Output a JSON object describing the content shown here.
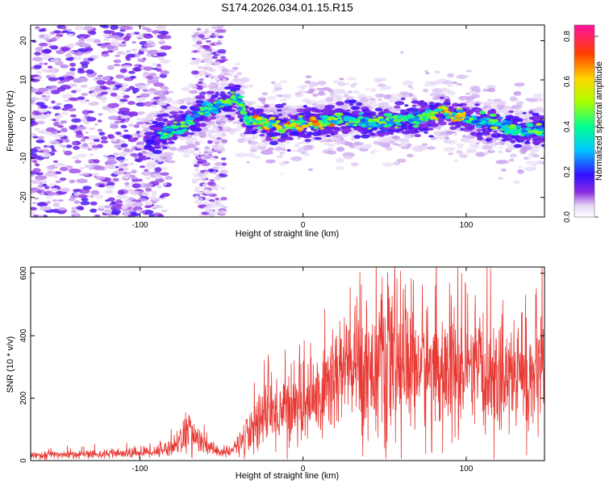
{
  "title": "S174.2026.034.01.15.R15",
  "chart_data": [
    {
      "type": "heatmap",
      "title": "S174.2026.034.01.15.R15",
      "xlabel": "Height of straight line (km)",
      "ylabel": "Frequency (Hz)",
      "xlim": [
        -167,
        148
      ],
      "ylim": [
        -25,
        24
      ],
      "xticks": [
        -100,
        0,
        100
      ],
      "yticks": [
        -20,
        -10,
        0,
        10,
        20
      ],
      "colorbar": {
        "label": "Normalized spectral amplitude",
        "range": [
          0,
          0.85
        ],
        "ticks": [
          "0.0",
          "0.2",
          "0.4",
          "0.6",
          "0.8"
        ]
      },
      "trace": {
        "x": [
          -95,
          -85,
          -75,
          -65,
          -55,
          -45,
          -40,
          -35,
          -25,
          -10,
          0,
          10,
          20,
          30,
          40,
          50,
          60,
          70,
          80,
          85,
          90,
          100,
          110,
          120,
          130,
          140,
          148
        ],
        "y": [
          -6,
          -4,
          -2,
          1,
          3,
          5,
          6,
          0,
          -1,
          -2,
          -1,
          -1,
          0,
          0,
          -1,
          -1,
          0,
          0,
          1,
          3,
          1,
          0,
          -1,
          -1,
          -3,
          -3,
          -3
        ]
      }
    },
    {
      "type": "line",
      "xlabel": "Height of straight line (km)",
      "ylabel": "SNR (10 * v/v)",
      "xlim": [
        -167,
        148
      ],
      "ylim": [
        0,
        620
      ],
      "xticks": [
        -100,
        0,
        100
      ],
      "yticks": [
        0,
        200,
        400,
        600
      ],
      "series": [
        {
          "name": "SNR",
          "color": "#e83a35",
          "x": [
            -167,
            -140,
            -110,
            -90,
            -80,
            -75,
            -70,
            -65,
            -60,
            -50,
            -45,
            -40,
            -35,
            -30,
            -25,
            -20,
            -15,
            -10,
            0,
            10,
            20,
            30,
            40,
            50,
            55,
            60,
            70,
            80,
            90,
            100,
            110,
            120,
            130,
            140,
            148
          ],
          "y": [
            18,
            20,
            22,
            30,
            45,
            70,
            95,
            70,
            45,
            28,
            25,
            50,
            90,
            120,
            140,
            150,
            160,
            170,
            190,
            200,
            280,
            300,
            300,
            320,
            330,
            320,
            310,
            290,
            280,
            275,
            270,
            275,
            270,
            265,
            280
          ]
        }
      ]
    }
  ]
}
